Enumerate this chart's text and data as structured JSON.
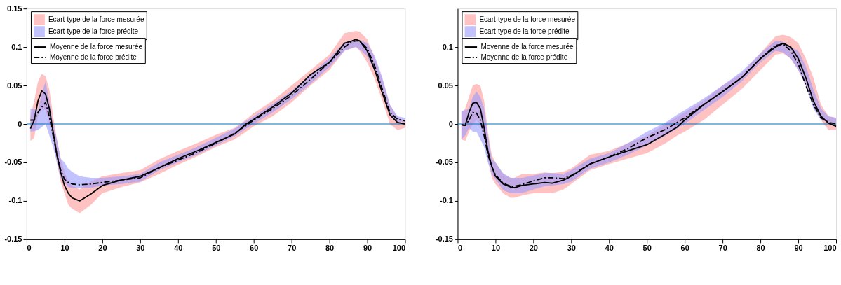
{
  "chart_data": [
    {
      "type": "line",
      "xlim": [
        0,
        100
      ],
      "ylim": [
        -0.15,
        0.15
      ],
      "xticks": [
        0,
        10,
        20,
        30,
        40,
        50,
        60,
        70,
        80,
        90,
        100
      ],
      "yticks": [
        -0.15,
        -0.1,
        -0.05,
        0,
        0.05,
        0.1,
        0.15
      ],
      "legend": "top left",
      "ref_lines": [
        {
          "axis": "y",
          "value": 0,
          "color": "#0072bd"
        }
      ],
      "series": [
        {
          "name": "Ecart-type de la force mesurée",
          "type": "area",
          "color": "#ff9999"
        },
        {
          "name": "Ecart-type de la force prédite",
          "type": "area",
          "color": "#9999ff"
        },
        {
          "name": "Moyenne de la force mesurée",
          "type": "line",
          "line_style": "solid",
          "color": "#000000",
          "x": [
            1,
            2,
            3,
            4,
            5,
            6,
            7,
            8,
            9,
            10,
            11,
            12,
            14,
            17,
            20,
            25,
            30,
            35,
            40,
            45,
            50,
            55,
            58,
            60,
            65,
            70,
            75,
            80,
            84,
            86,
            87,
            88,
            90,
            92,
            94,
            96,
            98,
            100
          ],
          "values": [
            -0.006,
            0.005,
            0.03,
            0.043,
            0.039,
            0.02,
            -0.01,
            -0.04,
            -0.063,
            -0.08,
            -0.09,
            -0.096,
            -0.1,
            -0.091,
            -0.08,
            -0.073,
            -0.068,
            -0.057,
            -0.045,
            -0.035,
            -0.024,
            -0.013,
            0,
            0.006,
            0.022,
            0.04,
            0.064,
            0.08,
            0.105,
            0.108,
            0.11,
            0.108,
            0.095,
            0.07,
            0.04,
            0.012,
            0.002,
            0
          ],
          "lower": [
            -0.022,
            -0.018,
            0.01,
            0.02,
            0.018,
            0.0,
            -0.02,
            -0.05,
            -0.075,
            -0.09,
            -0.105,
            -0.11,
            -0.116,
            -0.105,
            -0.09,
            -0.082,
            -0.076,
            -0.065,
            -0.053,
            -0.042,
            -0.03,
            -0.02,
            -0.01,
            -0.003,
            0.01,
            0.028,
            0.05,
            0.07,
            0.095,
            0.098,
            0.1,
            0.095,
            0.08,
            0.058,
            0.03,
            0.0,
            -0.008,
            -0.005
          ],
          "upper": [
            0.01,
            0.03,
            0.055,
            0.065,
            0.062,
            0.045,
            0.01,
            -0.02,
            -0.045,
            -0.062,
            -0.075,
            -0.08,
            -0.085,
            -0.075,
            -0.068,
            -0.064,
            -0.06,
            -0.046,
            -0.035,
            -0.025,
            -0.014,
            -0.005,
            0.006,
            0.014,
            0.03,
            0.05,
            0.07,
            0.09,
            0.118,
            0.12,
            0.121,
            0.12,
            0.11,
            0.085,
            0.058,
            0.025,
            0.008,
            0.005
          ]
        },
        {
          "name": "Moyenne de la force prédite",
          "type": "line",
          "line_style": "dashed",
          "color": "#000000",
          "x": [
            1,
            2,
            3,
            4,
            5,
            6,
            7,
            8,
            9,
            10,
            11,
            12,
            14,
            17,
            20,
            25,
            30,
            35,
            40,
            45,
            50,
            55,
            58,
            60,
            65,
            70,
            75,
            80,
            84,
            86,
            87,
            88,
            90,
            92,
            94,
            96,
            98,
            100
          ],
          "values": [
            0.005,
            0.005,
            0.015,
            0.022,
            0.028,
            0.01,
            -0.015,
            -0.04,
            -0.06,
            -0.072,
            -0.076,
            -0.078,
            -0.079,
            -0.078,
            -0.076,
            -0.073,
            -0.07,
            -0.057,
            -0.047,
            -0.037,
            -0.025,
            -0.012,
            -0.002,
            0.005,
            0.02,
            0.037,
            0.058,
            0.08,
            0.1,
            0.107,
            0.108,
            0.108,
            0.098,
            0.075,
            0.045,
            0.015,
            0.006,
            0.004
          ],
          "lower": [
            -0.01,
            -0.009,
            -0.008,
            -0.004,
            0.0,
            -0.015,
            -0.03,
            -0.05,
            -0.07,
            -0.075,
            -0.082,
            -0.083,
            -0.083,
            -0.083,
            -0.08,
            -0.078,
            -0.075,
            -0.06,
            -0.05,
            -0.04,
            -0.028,
            -0.016,
            -0.006,
            0.0,
            0.015,
            0.032,
            0.052,
            0.074,
            0.095,
            0.099,
            0.1,
            0.097,
            0.088,
            0.068,
            0.04,
            0.01,
            0.003,
            0.002
          ],
          "upper": [
            0.02,
            0.019,
            0.018,
            0.04,
            0.055,
            0.03,
            0.0,
            -0.02,
            -0.045,
            -0.05,
            -0.058,
            -0.062,
            -0.068,
            -0.07,
            -0.07,
            -0.068,
            -0.065,
            -0.05,
            -0.04,
            -0.03,
            -0.018,
            -0.006,
            0.004,
            0.01,
            0.026,
            0.043,
            0.064,
            0.086,
            0.106,
            0.109,
            0.11,
            0.109,
            0.105,
            0.088,
            0.06,
            0.025,
            0.01,
            0.008
          ]
        }
      ]
    },
    {
      "type": "line",
      "xlim": [
        0,
        100
      ],
      "ylim": [
        -0.15,
        0.15
      ],
      "xticks": [
        0,
        10,
        20,
        30,
        40,
        50,
        60,
        70,
        80,
        90,
        100
      ],
      "yticks": [
        -0.15,
        -0.1,
        -0.05,
        0,
        0.05,
        0.1
      ],
      "legend": "top left",
      "ref_lines": [
        {
          "axis": "y",
          "value": 0,
          "color": "#0072bd"
        }
      ],
      "series": [
        {
          "name": "Ecart-type de la force mesurée",
          "type": "area",
          "color": "#ff9999"
        },
        {
          "name": "Ecart-type de la force prédite",
          "type": "area",
          "color": "#9999ff"
        },
        {
          "name": "Moyenne de la force mesurée",
          "type": "line",
          "line_style": "solid",
          "color": "#000000",
          "x": [
            1,
            2,
            3,
            4,
            5,
            6,
            7,
            8,
            9,
            10,
            12,
            14,
            15,
            17,
            20,
            23,
            25,
            28,
            30,
            35,
            40,
            45,
            50,
            55,
            58,
            60,
            65,
            70,
            75,
            80,
            84,
            86,
            88,
            90,
            92,
            94,
            96,
            98,
            100
          ],
          "values": [
            -0.001,
            -0.002,
            0.015,
            0.027,
            0.028,
            0.02,
            -0.005,
            -0.035,
            -0.055,
            -0.068,
            -0.078,
            -0.082,
            -0.083,
            -0.08,
            -0.078,
            -0.076,
            -0.077,
            -0.073,
            -0.068,
            -0.052,
            -0.043,
            -0.035,
            -0.027,
            -0.013,
            -0.004,
            0.005,
            0.025,
            0.042,
            0.06,
            0.085,
            0.1,
            0.105,
            0.1,
            0.085,
            0.06,
            0.03,
            0.01,
            0.001,
            -0.003
          ],
          "lower": [
            -0.02,
            -0.022,
            -0.01,
            0.0,
            0.005,
            0.0,
            -0.02,
            -0.045,
            -0.07,
            -0.078,
            -0.09,
            -0.096,
            -0.096,
            -0.093,
            -0.09,
            -0.09,
            -0.09,
            -0.085,
            -0.078,
            -0.06,
            -0.052,
            -0.045,
            -0.038,
            -0.025,
            -0.015,
            -0.01,
            0.005,
            0.025,
            0.045,
            0.07,
            0.09,
            0.092,
            0.085,
            0.07,
            0.05,
            0.025,
            0.005,
            -0.008,
            -0.008
          ],
          "upper": [
            0.015,
            0.02,
            0.035,
            0.05,
            0.052,
            0.05,
            0.03,
            -0.01,
            -0.04,
            -0.05,
            -0.065,
            -0.07,
            -0.07,
            -0.065,
            -0.065,
            -0.063,
            -0.064,
            -0.062,
            -0.058,
            -0.04,
            -0.035,
            -0.025,
            -0.015,
            0.0,
            0.009,
            0.015,
            0.03,
            0.05,
            0.065,
            0.092,
            0.114,
            0.116,
            0.113,
            0.105,
            0.085,
            0.06,
            0.025,
            0.01,
            0.008
          ]
        },
        {
          "name": "Moyenne de la force prédite",
          "type": "line",
          "line_style": "dashed",
          "color": "#000000",
          "x": [
            1,
            2,
            3,
            4,
            5,
            6,
            7,
            8,
            9,
            10,
            12,
            14,
            15,
            17,
            20,
            23,
            25,
            28,
            30,
            35,
            40,
            45,
            50,
            55,
            58,
            60,
            65,
            70,
            75,
            80,
            84,
            86,
            88,
            90,
            92,
            94,
            96,
            98,
            100
          ],
          "values": [
            -0.001,
            -0.002,
            0.005,
            0.015,
            0.014,
            0.005,
            -0.015,
            -0.04,
            -0.055,
            -0.066,
            -0.077,
            -0.081,
            -0.081,
            -0.079,
            -0.074,
            -0.07,
            -0.07,
            -0.071,
            -0.067,
            -0.052,
            -0.043,
            -0.032,
            -0.018,
            -0.007,
            0.002,
            0.008,
            0.025,
            0.042,
            0.06,
            0.085,
            0.102,
            0.104,
            0.095,
            0.078,
            0.05,
            0.025,
            0.008,
            0.002,
            0
          ],
          "lower": [
            -0.02,
            -0.015,
            -0.005,
            -0.01,
            -0.01,
            -0.02,
            -0.03,
            -0.05,
            -0.065,
            -0.072,
            -0.086,
            -0.09,
            -0.09,
            -0.09,
            -0.085,
            -0.081,
            -0.08,
            -0.078,
            -0.075,
            -0.058,
            -0.05,
            -0.04,
            -0.028,
            -0.015,
            -0.006,
            0.0,
            0.018,
            0.035,
            0.055,
            0.08,
            0.095,
            0.093,
            0.085,
            0.07,
            0.05,
            0.02,
            0.005,
            0.002,
            -0.002
          ],
          "upper": [
            0.017,
            0.018,
            0.02,
            0.035,
            0.042,
            0.035,
            0.02,
            -0.015,
            -0.045,
            -0.05,
            -0.064,
            -0.07,
            -0.07,
            -0.07,
            -0.067,
            -0.064,
            -0.064,
            -0.065,
            -0.06,
            -0.045,
            -0.038,
            -0.025,
            -0.01,
            0.002,
            0.012,
            0.018,
            0.033,
            0.05,
            0.068,
            0.092,
            0.108,
            0.107,
            0.1,
            0.095,
            0.075,
            0.045,
            0.02,
            0.01,
            0.008
          ]
        }
      ]
    }
  ]
}
